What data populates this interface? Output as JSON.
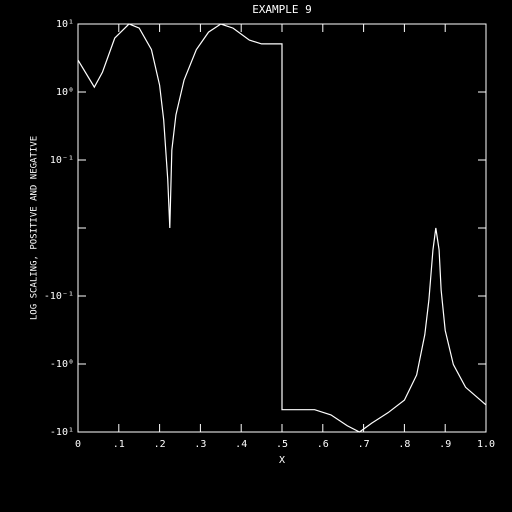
{
  "chart_data": {
    "type": "line",
    "title": "EXAMPLE 9",
    "x_label": "X",
    "y_label": "LOG SCALING, POSITIVE AND NEGATIVE",
    "yscale": "symlog",
    "linthresh": 0.1,
    "color": "#ffffff",
    "xlim": [
      0,
      1.0
    ],
    "xticks": [
      0,
      {
        "value": 0.1,
        "label": ".1"
      },
      {
        "value": 0.2,
        "label": ".2"
      },
      {
        "value": 0.3,
        "label": ".3"
      },
      {
        "value": 0.4,
        "label": ".4"
      },
      {
        "value": 0.5,
        "label": ".5"
      },
      {
        "value": 0.6,
        "label": ".6"
      },
      {
        "value": 0.7,
        "label": ".7"
      },
      {
        "value": 0.8,
        "label": ".8"
      },
      {
        "value": 0.9,
        "label": ".9"
      },
      {
        "value": 1.0,
        "label": "1.0"
      }
    ],
    "ylim": [
      -10,
      10
    ],
    "yticks": [
      {
        "value": 10,
        "label": "10¹"
      },
      {
        "value": 1,
        "label": "10⁰"
      },
      {
        "value": 0.1,
        "label": "10⁻¹"
      },
      0,
      {
        "value": -0.1,
        "label": "-10⁻¹"
      },
      {
        "value": -1,
        "label": "-10⁰"
      },
      {
        "value": -10,
        "label": "-10¹"
      }
    ],
    "x": [
      0,
      0.04,
      0.06,
      0.09,
      0.125,
      0.15,
      0.18,
      0.2,
      0.21,
      0.22,
      0.225,
      0.23,
      0.24,
      0.26,
      0.29,
      0.32,
      0.35,
      0.38,
      0.42,
      0.45,
      0.5,
      0.5,
      0.58,
      0.62,
      0.66,
      0.69,
      0.72,
      0.76,
      0.8,
      0.83,
      0.85,
      0.86,
      0.87,
      0.877,
      0.885,
      0.89,
      0.9,
      0.92,
      0.95,
      1.0
    ],
    "values": [
      2.95,
      1.18,
      1.96,
      6.2,
      10,
      8.7,
      4.2,
      1.26,
      0.39,
      0.071,
      0,
      0.14,
      0.46,
      1.5,
      4.2,
      7.6,
      10,
      8.7,
      5.8,
      5.1,
      5.1,
      -4.7,
      -4.7,
      -5.6,
      -8.1,
      -10,
      -7.4,
      -5.2,
      -3.4,
      -1.45,
      -0.37,
      -0.115,
      -0.032,
      0,
      -0.032,
      -0.091,
      -0.32,
      -1.02,
      -2.2,
      -4.0
    ]
  }
}
